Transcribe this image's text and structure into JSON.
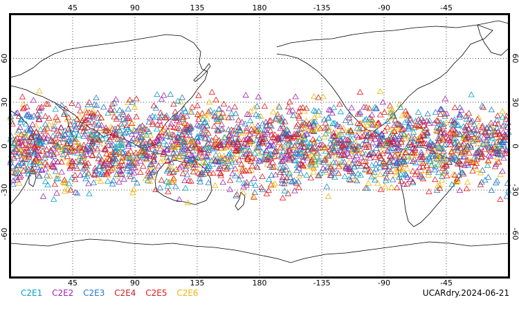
{
  "map": {
    "projection": "cylindrical-equidistant",
    "central_longitude": 180,
    "extent": {
      "lon": [
        0,
        360
      ],
      "lat": [
        -90,
        90
      ]
    },
    "top_lon_ticks": [
      "45",
      "90",
      "135",
      "180",
      "-135",
      "-90",
      "-45"
    ],
    "bottom_lon_ticks": [
      "45",
      "90",
      "135",
      "180",
      "-135",
      "-90",
      "-45"
    ],
    "lon_tick_values": [
      45,
      90,
      135,
      180,
      225,
      270,
      315
    ],
    "left_lat_ticks": [
      "60",
      "30",
      "0",
      "-30",
      "-60"
    ],
    "right_lat_ticks": [
      "60",
      "30",
      "0",
      "-30",
      "-60"
    ],
    "lat_tick_values": [
      60,
      30,
      0,
      -30,
      -60
    ],
    "grid": true,
    "grid_style": "dotted",
    "marker": "triangle-outline",
    "coastline_color": "#000000"
  },
  "legend": [
    {
      "label": "C2E1",
      "color": "#00a0c8"
    },
    {
      "label": "C2E2",
      "color": "#a020b0"
    },
    {
      "label": "C2E3",
      "color": "#1e78c8"
    },
    {
      "label": "C2E4",
      "color": "#c81e1e"
    },
    {
      "label": "C2E5",
      "color": "#e61414"
    },
    {
      "label": "C2E6",
      "color": "#f0b400"
    }
  ],
  "stamp": "UCARdry.2024-06-21",
  "chart_data": {
    "type": "scatter",
    "title": "",
    "xlabel": "",
    "ylabel": "",
    "xlim": [
      0,
      360
    ],
    "ylim": [
      -90,
      90
    ],
    "observation_lat_band": [
      -42,
      42
    ],
    "series": [
      {
        "name": "C2E1",
        "color": "#00a0c8"
      },
      {
        "name": "C2E2",
        "color": "#a020b0"
      },
      {
        "name": "C2E3",
        "color": "#1e78c8"
      },
      {
        "name": "C2E4",
        "color": "#c81e1e"
      },
      {
        "name": "C2E5",
        "color": "#e61414"
      },
      {
        "name": "C2E6",
        "color": "#f0b400"
      }
    ]
  }
}
